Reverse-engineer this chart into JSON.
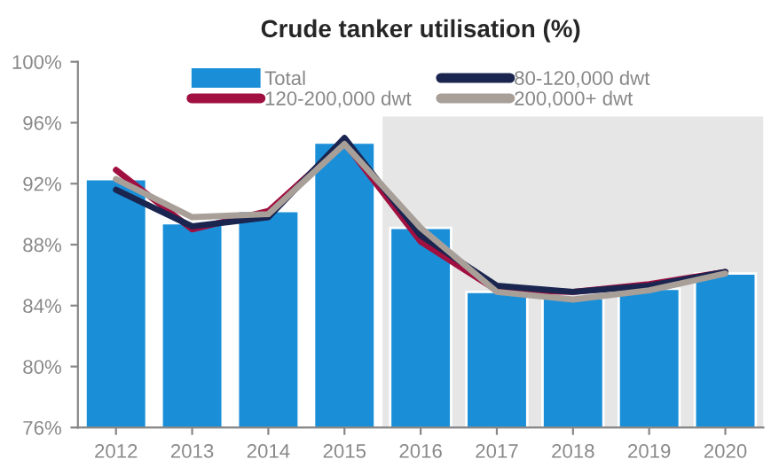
{
  "chart_data": {
    "type": "bar",
    "title": "Crude tanker utilisation (%)",
    "categories": [
      "2012",
      "2013",
      "2014",
      "2015",
      "2016",
      "2017",
      "2018",
      "2019",
      "2020"
    ],
    "series": [
      {
        "name": "Total",
        "color": "#1a8fd8",
        "values": [
          92.3,
          89.4,
          90.2,
          94.7,
          89.1,
          84.9,
          84.5,
          85.1,
          86.1
        ]
      },
      {
        "name": "120-200,000 dwt",
        "type": "line",
        "color": "#a01040",
        "values": [
          92.9,
          89.0,
          90.2,
          94.7,
          88.2,
          85.0,
          84.9,
          85.4,
          86.2
        ]
      },
      {
        "name": "80-120,000 dwt",
        "type": "line",
        "color": "#1a2550",
        "values": [
          91.6,
          89.2,
          89.8,
          95.0,
          88.6,
          85.3,
          84.9,
          85.3,
          86.2
        ]
      },
      {
        "name": "200,000+ dwt",
        "type": "line",
        "color": "#a89f98",
        "values": [
          92.3,
          89.8,
          90.0,
          94.6,
          89.1,
          84.9,
          84.4,
          85.0,
          86.1
        ]
      }
    ],
    "bands": [
      {
        "axis": "x",
        "from": "2016",
        "to": "2020",
        "color": "#e6e6e6"
      }
    ],
    "ylim": [
      76,
      100
    ],
    "yticks": [
      {
        "value": 76,
        "label": "76%"
      },
      {
        "value": 80,
        "label": "80%"
      },
      {
        "value": 84,
        "label": "84%"
      },
      {
        "value": 88,
        "label": "88%"
      },
      {
        "value": 92,
        "label": "92%"
      },
      {
        "value": 96,
        "label": "96%"
      },
      {
        "value": 100,
        "label": "100%"
      }
    ],
    "grid": false,
    "legend": "top"
  }
}
